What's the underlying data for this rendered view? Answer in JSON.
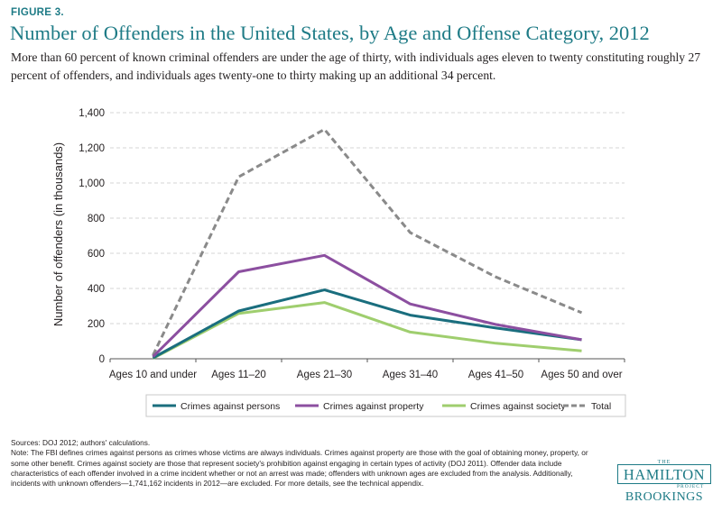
{
  "figure": {
    "label": "FIGURE 3.",
    "title": "Number of Offenders in the United States, by Age and Offense Category, 2012",
    "subtitle": "More than 60 percent of known criminal offenders are under the age of thirty, with individuals ages eleven to twenty constituting roughly 27 percent of offenders, and individuals ages twenty-one to thirty making up an additional 34 percent."
  },
  "chart_data": {
    "type": "line",
    "categories": [
      "Ages 10 and under",
      "Ages 11–20",
      "Ages 21–30",
      "Ages 31–40",
      "Ages 41–50",
      "Ages 50 and over"
    ],
    "ylabel": "Number of offenders (in thousands)",
    "ylim": [
      0,
      1400
    ],
    "yticks": [
      0,
      200,
      400,
      600,
      800,
      1000,
      1200,
      1400
    ],
    "ytick_labels": [
      "0",
      "200",
      "400",
      "600",
      "800",
      "1,000",
      "1,200",
      "1,400"
    ],
    "grid": "horizontal dashed",
    "legend_position": "bottom",
    "series": [
      {
        "name": "Crimes against persons",
        "color": "#1a6e7e",
        "style": "solid",
        "values": [
          5,
          272,
          392,
          248,
          175,
          108
        ]
      },
      {
        "name": "Crimes against property",
        "color": "#8c4fa0",
        "style": "solid",
        "values": [
          12,
          495,
          588,
          312,
          195,
          108
        ]
      },
      {
        "name": "Crimes against society",
        "color": "#9fce6e",
        "style": "solid",
        "values": [
          2,
          258,
          320,
          152,
          88,
          45
        ]
      },
      {
        "name": "Total",
        "color": "#8a8a8a",
        "style": "dashed",
        "values": [
          20,
          1035,
          1305,
          718,
          465,
          262
        ]
      }
    ]
  },
  "notes": {
    "sources": "Sources: DOJ 2012; authors' calculations.",
    "note": "Note: The FBI defines crimes against persons as crimes whose victims are always individuals. Crimes against property are those with the goal of obtaining money, property, or some other benefit. Crimes against society are those that represent society's prohibition against engaging in certain types of activity (DOJ 2011). Offender data include characteristics of each offender involved in a crime incident whether or not an arrest was made; offenders with unknown ages are excluded from the analysis. Additionally, incidents with unknown offenders—1,741,162 incidents in 2012—are excluded. For more details, see the technical appendix."
  },
  "logo": {
    "the": "THE",
    "name": "HAMILTON",
    "project": "PROJECT",
    "org": "BROOKINGS"
  }
}
